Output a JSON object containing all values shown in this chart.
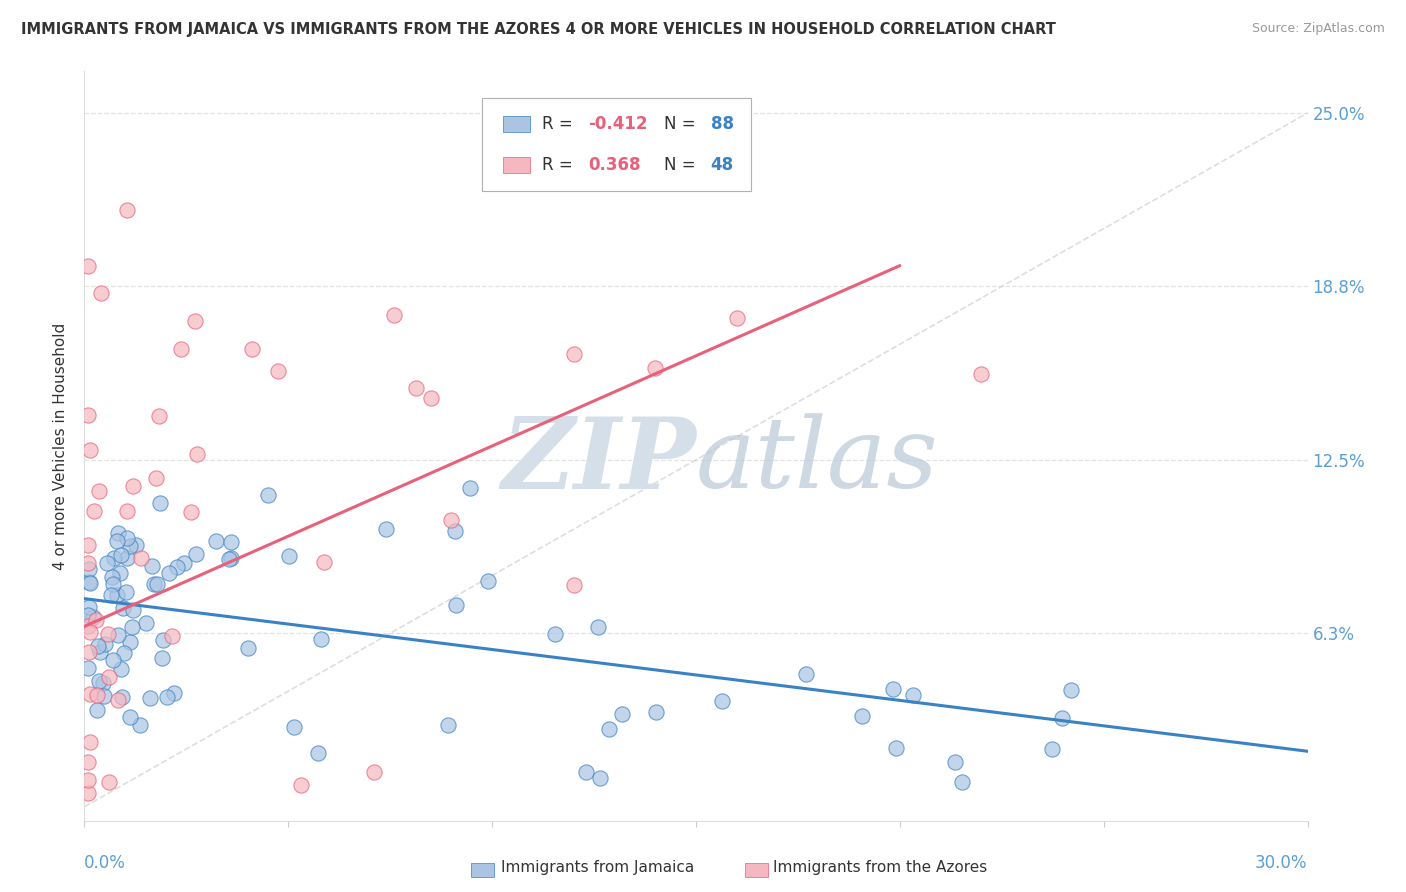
{
  "title": "IMMIGRANTS FROM JAMAICA VS IMMIGRANTS FROM THE AZORES 4 OR MORE VEHICLES IN HOUSEHOLD CORRELATION CHART",
  "source": "Source: ZipAtlas.com",
  "ylabel": "4 or more Vehicles in Household",
  "xmin": 0.0,
  "xmax": 0.3,
  "ymin": -0.005,
  "ymax": 0.265,
  "jamaica_color": "#aac4e2",
  "azores_color": "#f5b8c0",
  "jamaica_line_color": "#3b82c4",
  "azores_line_color": "#e8607a",
  "ref_line_color": "#c8c8c8",
  "watermark_zip": "ZIP",
  "watermark_atlas": "atlas",
  "watermark_color": "#d0dce8",
  "background_color": "#ffffff",
  "grid_color": "#dddddd",
  "axis_label_color": "#5a9fd4",
  "text_color": "#333333",
  "source_color": "#999999",
  "jamaica_r": -0.412,
  "jamaica_n": 88,
  "azores_r": 0.368,
  "azores_n": 48,
  "ytick_vals": [
    0.0625,
    0.125,
    0.1875,
    0.25
  ],
  "ytick_labels": [
    "6.3%",
    "12.5%",
    "18.8%",
    "25.0%"
  ]
}
